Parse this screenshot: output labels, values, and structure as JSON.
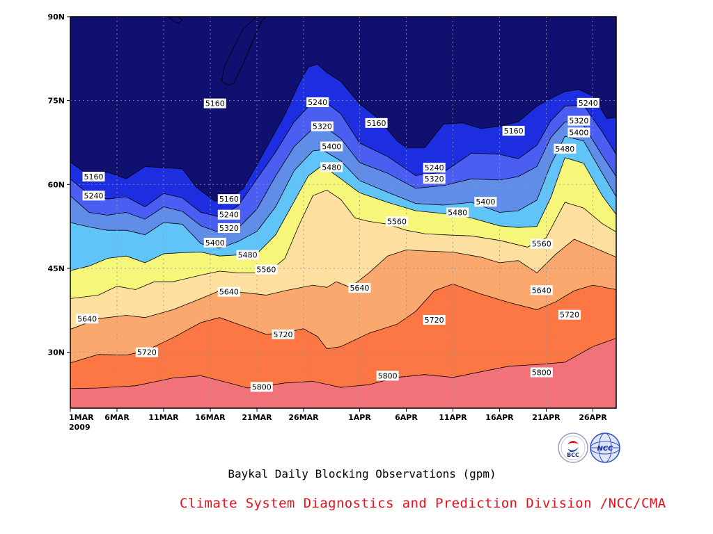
{
  "chart_data": {
    "type": "contour-filled",
    "caption": "Baykal Daily Blocking Observations (gpm)",
    "credit": "Climate System Diagnostics and Prediction Division /NCC/CMA",
    "x_ticks": [
      "1MAR",
      "6MAR",
      "11MAR",
      "16MAR",
      "21MAR",
      "26MAR",
      "1APR",
      "6APR",
      "11APR",
      "16APR",
      "21APR",
      "26APR"
    ],
    "x_tick_days": [
      0,
      5,
      10,
      15,
      20,
      25,
      31,
      36,
      41,
      46,
      51,
      56
    ],
    "x_year": "2009",
    "y_ticks": [
      "30N",
      "45N",
      "60N",
      "75N",
      "90N"
    ],
    "y_tick_lats": [
      30,
      45,
      60,
      75,
      90
    ],
    "xlim": [
      "1MAR2009",
      "29APR2009"
    ],
    "ylim": [
      20,
      90
    ],
    "grid": true,
    "levels": [
      5160,
      5240,
      5320,
      5400,
      5480,
      5560,
      5640,
      5720,
      5800
    ],
    "fill_colors": [
      "#101070",
      "#1d2ee0",
      "#4b5ef2",
      "#5f8de8",
      "#60c4f8",
      "#f6f67a",
      "#fde0a0",
      "#fba86e",
      "#fc7743",
      "#f2727a"
    ],
    "contours": [
      {
        "level": 5800,
        "day": [
          0,
          3,
          7,
          11,
          14,
          17,
          19,
          21,
          23,
          26,
          29,
          32,
          35,
          38,
          41,
          44,
          47,
          50,
          53,
          56,
          58.5
        ],
        "lat": [
          23.5,
          23.6,
          24,
          25.4,
          25.8,
          24.5,
          23.6,
          24,
          24.5,
          24.8,
          23.7,
          24.2,
          25.5,
          26,
          25.5,
          26.5,
          27.5,
          27.8,
          28.2,
          31,
          32.5
        ]
      },
      {
        "level": 5720,
        "day": [
          0,
          3,
          6,
          8,
          11,
          14,
          16,
          18,
          21,
          23,
          25,
          26.5,
          27.5,
          29,
          32,
          35,
          37,
          39,
          41,
          44,
          47,
          50,
          52,
          54,
          56,
          58.5
        ],
        "lat": [
          28.1,
          29.6,
          29.5,
          30.2,
          32.6,
          35.3,
          36.2,
          35,
          33.2,
          33.5,
          34.2,
          32.8,
          30.6,
          31,
          33.4,
          35,
          37.3,
          41,
          42.2,
          40.4,
          38.9,
          37.6,
          39,
          41,
          42,
          41.2
        ]
      },
      {
        "level": 5640,
        "day": [
          0,
          3,
          6,
          8,
          11,
          14,
          16,
          19,
          21,
          23,
          26,
          27.5,
          28.5,
          30,
          32,
          34,
          36,
          38,
          41,
          44,
          46,
          48,
          50,
          52,
          54,
          58.5
        ],
        "lat": [
          34.1,
          36,
          36.6,
          36.2,
          37.6,
          39.6,
          41,
          40.6,
          40.2,
          41,
          42,
          41.6,
          42.6,
          41.6,
          44.2,
          47.2,
          48.3,
          48.1,
          47.9,
          47,
          46,
          46.4,
          44.2,
          47.5,
          50.2,
          47
        ]
      },
      {
        "level": 5560,
        "day": [
          0,
          3,
          5,
          7,
          9,
          11,
          14,
          16,
          18,
          20,
          21.5,
          23,
          24.5,
          26,
          27.5,
          29,
          30.5,
          32,
          34,
          36,
          38,
          40,
          43,
          46,
          49,
          51,
          53,
          55,
          57,
          58.5
        ],
        "lat": [
          39.6,
          40.2,
          41.8,
          41.2,
          42.6,
          42.6,
          43.8,
          44.5,
          44.2,
          44.2,
          44.7,
          46.8,
          52.7,
          58,
          59,
          57.3,
          54,
          53.4,
          52.9,
          51.8,
          51.2,
          51,
          50.8,
          50,
          48.8,
          50.5,
          56.8,
          55.8,
          53,
          51.5
        ]
      },
      {
        "level": 5480,
        "day": [
          0,
          2,
          4,
          6,
          8,
          10,
          12,
          14,
          16,
          18,
          20,
          22,
          24,
          25.5,
          27,
          29,
          31,
          34,
          37,
          40,
          43,
          46,
          48,
          50,
          51.5,
          53,
          55,
          57,
          58.5
        ],
        "lat": [
          44.6,
          45.4,
          46.8,
          47.2,
          46,
          47.6,
          47.8,
          47.9,
          47.2,
          47.4,
          47.6,
          51,
          57,
          61.5,
          63.4,
          61,
          58.5,
          56.8,
          55.3,
          54.8,
          54,
          52.6,
          52.3,
          52.5,
          57.7,
          64.8,
          63.8,
          58,
          54.6
        ]
      },
      {
        "level": 5400,
        "day": [
          0,
          2,
          4,
          6,
          8,
          10,
          12,
          14,
          16,
          18,
          20,
          22,
          24,
          26,
          27,
          29,
          31,
          34,
          37,
          40,
          43,
          46,
          48,
          50,
          51.5,
          53,
          55,
          57,
          58.5
        ],
        "lat": [
          53.2,
          52.4,
          51.8,
          51.8,
          51,
          53.2,
          52.9,
          49.4,
          48.6,
          49.8,
          51.6,
          56,
          62.5,
          66,
          66.2,
          64.2,
          60.7,
          58.6,
          56.6,
          56.3,
          56.8,
          55,
          55.3,
          57.2,
          63.6,
          68.6,
          67.8,
          62,
          57.8
        ]
      },
      {
        "level": 5320,
        "day": [
          0,
          2,
          4,
          6,
          8,
          10,
          12,
          14,
          16,
          18,
          20,
          22,
          24,
          26,
          27,
          29,
          31,
          34,
          37,
          40,
          43,
          46,
          48,
          50,
          51.5,
          53,
          55,
          57,
          58.5
        ],
        "lat": [
          58,
          55,
          54.5,
          55,
          53.8,
          56,
          55.2,
          52.6,
          51.4,
          52.2,
          55.6,
          61.5,
          66.8,
          70,
          70.6,
          68.2,
          63.9,
          62,
          59.3,
          59.8,
          61,
          60.8,
          61.4,
          63.2,
          68.4,
          71.2,
          70.6,
          65.2,
          61.4
        ]
      },
      {
        "level": 5240,
        "day": [
          0,
          2,
          4,
          6,
          8,
          10,
          12,
          14,
          16,
          18,
          20,
          22,
          24,
          26,
          27,
          29,
          31,
          34,
          37,
          40,
          43,
          46,
          48,
          50,
          51.5,
          53,
          55,
          57,
          58.5
        ],
        "lat": [
          61,
          58.2,
          57.4,
          57.8,
          56,
          58.4,
          57.6,
          55,
          54.2,
          56.2,
          61,
          65.8,
          71.2,
          74.8,
          75.2,
          72.6,
          67.4,
          65,
          61.6,
          62.2,
          65.6,
          65.4,
          64.6,
          67,
          71.4,
          74,
          74.2,
          69.4,
          65.4
        ]
      },
      {
        "level": 5160,
        "day": [
          0,
          2,
          4,
          6,
          8,
          10,
          12,
          13.5,
          15.5,
          17,
          18.5,
          20,
          21.5,
          23,
          24.5,
          25.5,
          26.5,
          27.5,
          29,
          31,
          33,
          35,
          36,
          38,
          40,
          42,
          44,
          46,
          48,
          50,
          52,
          53,
          54.5,
          56,
          57.5,
          58.5
        ],
        "lat": [
          64,
          61.6,
          62.2,
          61,
          63.2,
          63,
          62.8,
          59.5,
          57,
          57.5,
          59.2,
          63.5,
          68,
          72.5,
          78,
          81,
          81.5,
          80,
          78.4,
          74.4,
          71.8,
          67.8,
          66.6,
          66.6,
          70.8,
          71,
          70,
          70.4,
          71.2,
          74,
          75.8,
          76.6,
          77,
          75.8,
          71.8,
          72
        ]
      },
      {
        "level": 5160,
        "day": [
          17.5,
          18.5,
          19.5,
          20.5,
          21,
          20,
          18.5,
          17.5,
          16.5,
          16.2,
          16.8,
          17.5
        ],
        "lat": [
          78,
          81.5,
          85.5,
          89.2,
          90,
          90,
          87.8,
          84.5,
          81,
          78.5,
          77.8,
          78
        ]
      },
      {
        "level": 5160,
        "day": [
          10.5,
          11.2,
          11.6,
          12,
          11.6,
          11,
          10.5,
          10.5
        ],
        "lat": [
          90,
          89,
          88.8,
          89.4,
          90,
          90,
          90,
          90
        ]
      }
    ],
    "contour_labels": [
      {
        "text": "5160",
        "day": 2.5,
        "lat": 61.4
      },
      {
        "text": "5240",
        "day": 2.5,
        "lat": 58.0
      },
      {
        "text": "5640",
        "day": 1.8,
        "lat": 36.0
      },
      {
        "text": "5720",
        "day": 8.2,
        "lat": 30.0
      },
      {
        "text": "5160",
        "day": 15.5,
        "lat": 74.5
      },
      {
        "text": "5160",
        "day": 17.0,
        "lat": 57.4
      },
      {
        "text": "5240",
        "day": 17.0,
        "lat": 54.6
      },
      {
        "text": "5320",
        "day": 17.0,
        "lat": 52.2
      },
      {
        "text": "5400",
        "day": 15.5,
        "lat": 49.6
      },
      {
        "text": "5480",
        "day": 19.0,
        "lat": 47.4
      },
      {
        "text": "5560",
        "day": 21.0,
        "lat": 44.8
      },
      {
        "text": "5640",
        "day": 17.0,
        "lat": 40.8
      },
      {
        "text": "5720",
        "day": 22.8,
        "lat": 33.2
      },
      {
        "text": "5800",
        "day": 20.5,
        "lat": 23.8
      },
      {
        "text": "5240",
        "day": 26.5,
        "lat": 74.7
      },
      {
        "text": "5320",
        "day": 27.0,
        "lat": 70.4
      },
      {
        "text": "5400",
        "day": 28.0,
        "lat": 66.8
      },
      {
        "text": "5480",
        "day": 28.0,
        "lat": 63.1
      },
      {
        "text": "5640",
        "day": 31.0,
        "lat": 41.5
      },
      {
        "text": "5160",
        "day": 32.8,
        "lat": 71.0
      },
      {
        "text": "5560",
        "day": 35.0,
        "lat": 53.4
      },
      {
        "text": "5800",
        "day": 34.0,
        "lat": 25.8
      },
      {
        "text": "5240",
        "day": 39.0,
        "lat": 63.0
      },
      {
        "text": "5320",
        "day": 39.0,
        "lat": 61.0
      },
      {
        "text": "5480",
        "day": 41.5,
        "lat": 55.0
      },
      {
        "text": "5400",
        "day": 44.5,
        "lat": 56.9
      },
      {
        "text": "5720",
        "day": 39.0,
        "lat": 35.8
      },
      {
        "text": "5160",
        "day": 47.5,
        "lat": 69.6
      },
      {
        "text": "5560",
        "day": 50.5,
        "lat": 49.4
      },
      {
        "text": "5640",
        "day": 50.5,
        "lat": 41.1
      },
      {
        "text": "5720",
        "day": 53.5,
        "lat": 36.7
      },
      {
        "text": "5800",
        "day": 50.5,
        "lat": 26.4
      },
      {
        "text": "5480",
        "day": 53.0,
        "lat": 66.4
      },
      {
        "text": "5400",
        "day": 54.5,
        "lat": 69.3
      },
      {
        "text": "5320",
        "day": 54.5,
        "lat": 71.4
      },
      {
        "text": "5240",
        "day": 55.5,
        "lat": 74.6
      }
    ]
  }
}
